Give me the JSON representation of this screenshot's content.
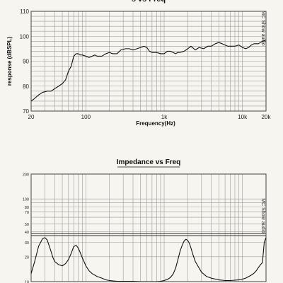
{
  "colors": {
    "background": "#f7f5f0",
    "grid": "#9a9a9a",
    "curve": "#111111",
    "frame": "#444444"
  },
  "chart_data": [
    {
      "type": "line",
      "title": "s vs Freq",
      "xlabel": "Frequency(Hz)",
      "ylabel": "response (dBSPL)",
      "x_scale": "log",
      "xlim": [
        20,
        20000
      ],
      "ylim": [
        70,
        110
      ],
      "x_tick_labels": [
        {
          "value": 20,
          "label": "20"
        },
        {
          "value": 100,
          "label": "100"
        },
        {
          "value": 1000,
          "label": "1k"
        },
        {
          "value": 10000,
          "label": "10k"
        },
        {
          "value": 20000,
          "label": "20k"
        }
      ],
      "y_ticks": [
        70,
        80,
        90,
        100,
        110
      ],
      "watermark": "MC Show audio",
      "grid": true,
      "series": [
        {
          "x": [
            20,
            22,
            25,
            28,
            32,
            36,
            40,
            45,
            50,
            55,
            60,
            65,
            70,
            75,
            80,
            85,
            90,
            100,
            110,
            120,
            130,
            140,
            160,
            180,
            200,
            220,
            250,
            280,
            320,
            360,
            400,
            450,
            500,
            550,
            600,
            650,
            700,
            750,
            800,
            900,
            1000,
            1100,
            1200,
            1300,
            1400,
            1500,
            1600,
            1800,
            2000,
            2200,
            2500,
            2800,
            3200,
            3600,
            4000,
            4500,
            5000,
            5500,
            6000,
            6500,
            7000,
            8000,
            9000,
            10000,
            11000,
            12000,
            13000,
            14000,
            15000,
            16000,
            18000,
            20000
          ],
          "y": [
            74,
            75,
            76.5,
            77.5,
            78,
            78,
            79,
            80,
            81,
            82.5,
            86,
            88,
            92,
            93,
            93,
            92.5,
            92.5,
            92,
            91.5,
            92,
            92.5,
            92,
            92,
            93,
            93.5,
            93,
            93,
            94.5,
            95,
            95,
            94.5,
            95,
            95.5,
            96,
            95.5,
            94,
            93.5,
            93.5,
            93.5,
            93,
            93,
            94,
            94,
            93.5,
            93,
            93.5,
            93.5,
            94,
            95,
            96,
            94.5,
            95.5,
            95,
            96,
            96,
            97,
            97.5,
            97,
            96.5,
            96,
            96,
            96,
            96.5,
            95.5,
            95,
            95.5,
            96.5,
            97,
            97,
            97,
            98,
            98.5
          ]
        }
      ]
    },
    {
      "type": "line",
      "title": "Impedance  vs Freq",
      "x_scale": "log",
      "y_scale": "log",
      "xlim": [
        20,
        20000
      ],
      "ylim": [
        10,
        200
      ],
      "y_tick_labels": [
        {
          "value": 200,
          "label": "200"
        },
        {
          "value": 100,
          "label": "100"
        },
        {
          "value": 80,
          "label": "80"
        },
        {
          "value": 70,
          "label": "70"
        },
        {
          "value": 50,
          "label": "50"
        },
        {
          "value": 40,
          "label": "40"
        },
        {
          "value": 30,
          "label": "30"
        },
        {
          "value": 20,
          "label": "20"
        },
        {
          "value": 10,
          "label": "10"
        }
      ],
      "watermark": "MC Show audio",
      "grid": true,
      "series": [
        {
          "x": [
            20,
            22,
            25,
            28,
            30,
            32,
            35,
            38,
            40,
            45,
            50,
            55,
            60,
            65,
            70,
            75,
            80,
            90,
            100,
            110,
            120,
            140,
            160,
            180,
            200,
            250,
            300,
            400,
            500,
            600,
            700,
            800,
            900,
            1000,
            1100,
            1200,
            1300,
            1400,
            1500,
            1600,
            1700,
            1800,
            1900,
            2000,
            2100,
            2200,
            2300,
            2500,
            2800,
            3000,
            3500,
            4000,
            5000,
            6000,
            7000,
            8000,
            9000,
            10000,
            11000,
            12000,
            13000,
            14000,
            15000,
            16000,
            17000,
            18000,
            19000,
            20000
          ],
          "y": [
            12.5,
            17,
            27,
            33,
            34,
            32,
            25,
            19.5,
            17.5,
            16,
            15.5,
            16.5,
            18.5,
            22,
            26.5,
            27.5,
            25.5,
            19.5,
            15.5,
            13.5,
            12.5,
            11.5,
            11,
            10.5,
            10.3,
            10.1,
            10.1,
            10.1,
            10,
            10,
            10,
            10,
            10.1,
            10.3,
            10.6,
            11.2,
            12.3,
            14.5,
            18.5,
            23.5,
            27.5,
            31,
            32.5,
            31.5,
            29,
            25.5,
            22,
            17.5,
            14.5,
            13,
            11.5,
            11,
            10.5,
            10.3,
            10.3,
            10.4,
            10.5,
            10.7,
            11,
            11.5,
            12,
            12.6,
            13.5,
            14.8,
            16,
            17,
            30,
            34
          ]
        }
      ],
      "reference_lines": [
        36,
        38
      ]
    }
  ]
}
